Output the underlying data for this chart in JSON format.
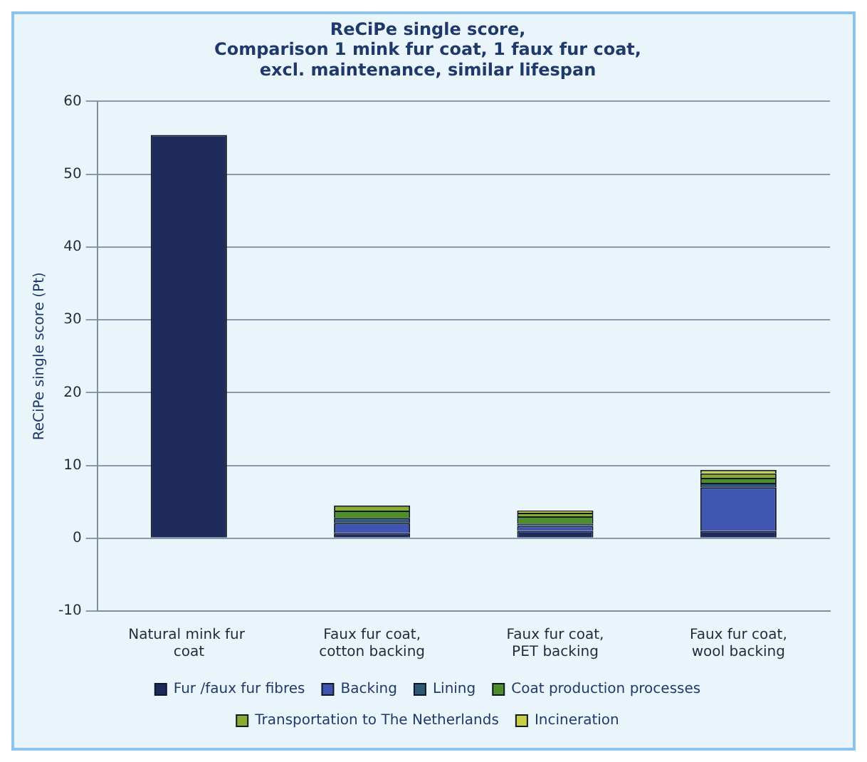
{
  "chart_data": {
    "type": "bar",
    "title": "ReCiPe single score,\nComparison 1 mink fur coat, 1 faux fur coat,\nexcl. maintenance, similar lifespan",
    "ylabel": "ReCiPe single score (Pt)",
    "categories": [
      "Natural mink fur coat",
      "Faux fur coat, cotton backing",
      "Faux fur coat, PET backing",
      "Faux fur coat, wool backing"
    ],
    "stacked": true,
    "series": [
      {
        "name": "Fur /faux fur fibres",
        "color": "#1f2a5c",
        "values": [
          55.4,
          0.7,
          1.0,
          1.0
        ]
      },
      {
        "name": "Backing",
        "color": "#4055b0",
        "values": [
          0,
          1.4,
          0.7,
          6.0
        ]
      },
      {
        "name": "Lining",
        "color": "#2e5a78",
        "values": [
          0,
          0.7,
          0.3,
          0.6
        ]
      },
      {
        "name": "Coat production processes",
        "color": "#4f8f2a",
        "values": [
          null,
          1.0,
          1.0,
          0.7
        ]
      },
      {
        "name": "Transportation to The Netherlands",
        "color": "#8aaa30",
        "values": [
          null,
          0.7,
          0.5,
          0.6
        ]
      },
      {
        "name": "Incineration",
        "color": "#c8cf40",
        "values": [
          null,
          0,
          0.3,
          0.5
        ]
      }
    ],
    "ylim": [
      -10,
      60
    ],
    "yticks": [
      -10,
      0,
      10,
      20,
      30,
      40,
      50,
      60
    ],
    "grid": "y",
    "legend": "bottom"
  }
}
